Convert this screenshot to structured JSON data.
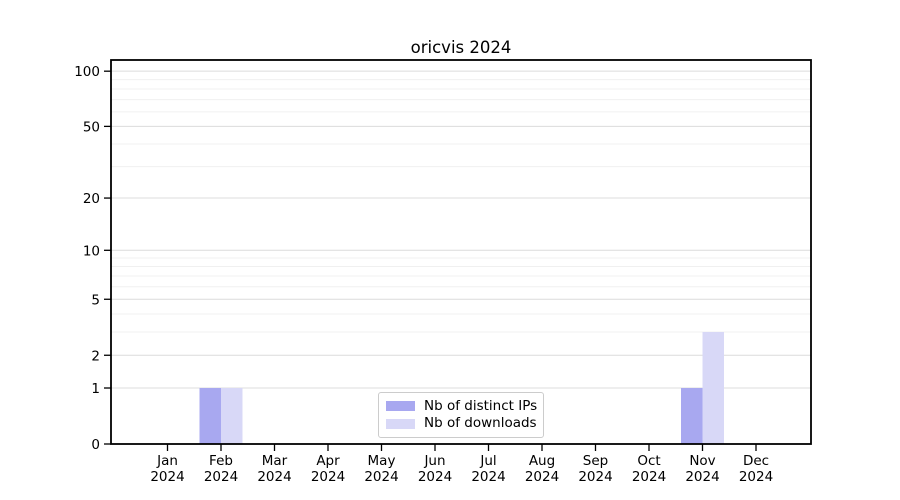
{
  "chart_data": {
    "type": "bar",
    "title": "oricvis 2024",
    "categories": [
      "Jan",
      "Feb",
      "Mar",
      "Apr",
      "May",
      "Jun",
      "Jul",
      "Aug",
      "Sep",
      "Oct",
      "Nov",
      "Dec"
    ],
    "category_year": "2024",
    "series": [
      {
        "name": "Nb of distinct IPs",
        "color": "#a8a8f0",
        "values": [
          0,
          1,
          0,
          0,
          0,
          0,
          0,
          0,
          0,
          0,
          1,
          0
        ]
      },
      {
        "name": "Nb of downloads",
        "color": "#d8d8f7",
        "values": [
          0,
          1,
          0,
          0,
          0,
          0,
          0,
          0,
          0,
          0,
          3,
          0
        ]
      }
    ],
    "xlabel": "",
    "ylabel": "",
    "y_axis": {
      "scale": "log1p",
      "major_ticks": [
        0,
        1,
        2,
        5,
        10,
        20,
        50,
        100
      ],
      "minor_ticks": [
        3,
        4,
        6,
        7,
        8,
        9,
        30,
        40,
        60,
        70,
        80,
        90
      ],
      "ylim": [
        0,
        115
      ]
    },
    "legend": {
      "position": "lower center",
      "entries": [
        "Nb of distinct IPs",
        "Nb of downloads"
      ]
    },
    "grid": "horizontal"
  },
  "colors": {
    "major_grid": "#dcdcdc",
    "minor_grid": "#f0f0f0",
    "spine": "#000000",
    "tick": "#000000",
    "text": "#000000",
    "legend_border": "#cccccc",
    "background": "#ffffff"
  }
}
